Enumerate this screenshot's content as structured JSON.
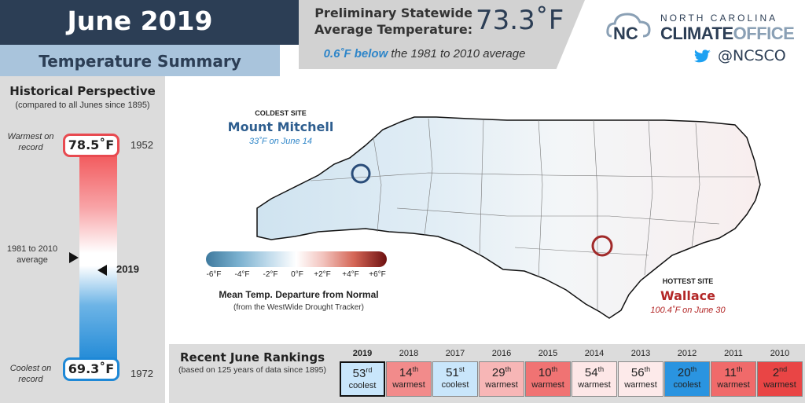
{
  "header": {
    "title": "June 2019",
    "subtitle": "Temperature Summary",
    "stat_label_line1": "Preliminary Statewide",
    "stat_label_line2": "Average Temperature:",
    "stat_value": "73.3˚F",
    "stat_note_highlight": "0.6˚F below",
    "stat_note_rest": " the 1981 to 2010 average"
  },
  "branding": {
    "org_line1": "NORTH CAROLINA",
    "org_line2a": "CLIMATE",
    "org_line2b": "OFFICE",
    "twitter_handle": "@NCSCO"
  },
  "historical": {
    "title": "Historical Perspective",
    "subtitle": "(compared to all Junes since 1895)",
    "warmest_label": "Warmest on record",
    "warmest_value": "78.5˚F",
    "warmest_year": "1952",
    "average_label": "1981 to 2010 average",
    "current_year": "2019",
    "coolest_label": "Coolest on record",
    "coolest_value": "69.3˚F",
    "coolest_year": "1972"
  },
  "map": {
    "coldest": {
      "title": "COLDEST SITE",
      "name": "Mount Mitchell",
      "detail": "33˚F on June 14"
    },
    "hottest": {
      "title": "HOTTEST SITE",
      "name": "Wallace",
      "detail": "100.4˚F on June 30"
    },
    "legend": {
      "ticks": [
        "-6°F",
        "-4°F",
        "-2°F",
        "0°F",
        "+2°F",
        "+4°F",
        "+6°F"
      ],
      "title": "Mean Temp. Departure from Normal",
      "subtitle": "(from the WestWide Drought Tracker)"
    }
  },
  "rankings": {
    "title": "Recent June Rankings",
    "subtitle": "(based on 125 years of data since 1895)",
    "items": [
      {
        "year": "2019",
        "num": "53",
        "suffix": "rd",
        "dir": "coolest",
        "color": "#c9e6fb",
        "current": true
      },
      {
        "year": "2018",
        "num": "14",
        "suffix": "th",
        "dir": "warmest",
        "color": "#f28b8b",
        "current": false
      },
      {
        "year": "2017",
        "num": "51",
        "suffix": "st",
        "dir": "coolest",
        "color": "#c9e6fb",
        "current": false
      },
      {
        "year": "2016",
        "num": "29",
        "suffix": "th",
        "dir": "warmest",
        "color": "#f7b6b6",
        "current": false
      },
      {
        "year": "2015",
        "num": "10",
        "suffix": "th",
        "dir": "warmest",
        "color": "#f07373",
        "current": false
      },
      {
        "year": "2014",
        "num": "54",
        "suffix": "th",
        "dir": "warmest",
        "color": "#fde7e7",
        "current": false
      },
      {
        "year": "2013",
        "num": "56",
        "suffix": "th",
        "dir": "warmest",
        "color": "#fdeaea",
        "current": false
      },
      {
        "year": "2012",
        "num": "20",
        "suffix": "th",
        "dir": "coolest",
        "color": "#2a94e0",
        "current": false
      },
      {
        "year": "2011",
        "num": "11",
        "suffix": "th",
        "dir": "warmest",
        "color": "#f06a6a",
        "current": false
      },
      {
        "year": "2010",
        "num": "2",
        "suffix": "nd",
        "dir": "warmest",
        "color": "#e94545",
        "current": false
      }
    ]
  }
}
